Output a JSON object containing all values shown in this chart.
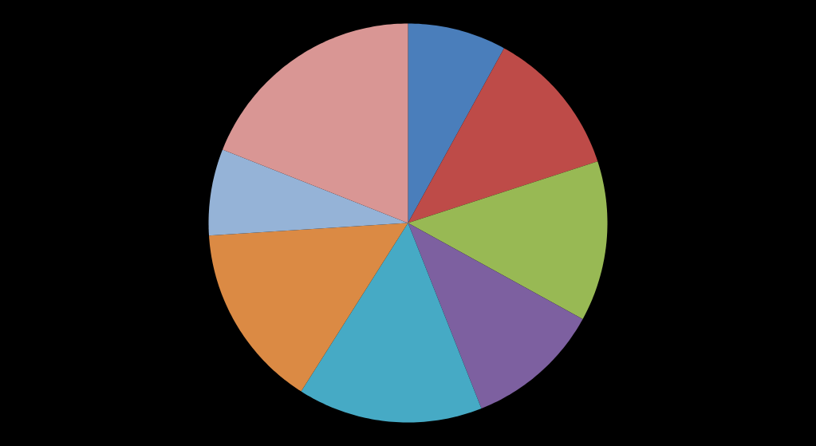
{
  "chart_data": {
    "type": "pie",
    "categories": [
      null,
      null,
      null,
      null,
      null,
      null,
      null,
      null
    ],
    "values": [
      8,
      12,
      13,
      11,
      15,
      15,
      7,
      19
    ],
    "colors": [
      "#4a7ebb",
      "#be4b48",
      "#98b954",
      "#7d60a0",
      "#46aac5",
      "#db8a44",
      "#95b3d7",
      "#d99694"
    ]
  }
}
